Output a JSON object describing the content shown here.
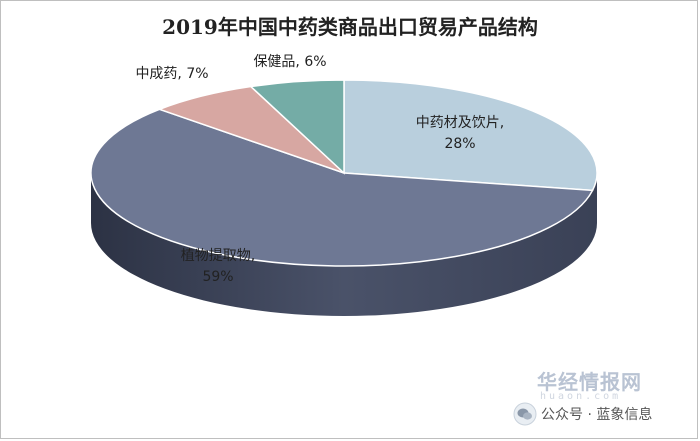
{
  "chart_data": {
    "type": "pie",
    "title": "2019年中国中药类商品出口贸易产品结构",
    "slices": [
      {
        "label": "中药材及饮片",
        "value": 28,
        "value_label": "28%",
        "color": "#b9cfdd"
      },
      {
        "label": "植物提取物",
        "value": 59,
        "value_label": "59%",
        "color": "#6e7894"
      },
      {
        "label": "中成药",
        "value": 7,
        "value_label": "7%",
        "color": "#d7a7a2"
      },
      {
        "label": "保健品",
        "value": 6,
        "value_label": "6%",
        "color": "#74aca6"
      }
    ]
  },
  "watermark": {
    "brand": "华经情报网",
    "url": "huaon.com",
    "wechat": "公众号 · 蓝象信息"
  }
}
